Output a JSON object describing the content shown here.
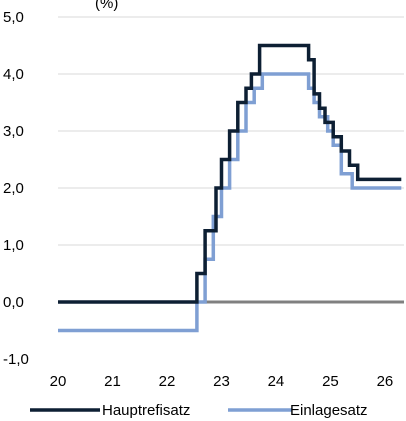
{
  "chart_data": {
    "type": "line",
    "title_fragment": "(%)",
    "xlabel": "",
    "ylabel": "",
    "xlim": [
      20,
      26.35
    ],
    "ylim": [
      -1,
      5
    ],
    "x_ticks": [
      "20",
      "21",
      "22",
      "23",
      "24",
      "25",
      "26"
    ],
    "y_ticks": [
      "-1,0",
      "0,0",
      "1,0",
      "2,0",
      "3,0",
      "4,0",
      "5,0"
    ],
    "y_gridlines": [
      1,
      2,
      3,
      4,
      5
    ],
    "grid": true,
    "legend_position": "bottom",
    "zero_line_color": "#808080",
    "series": [
      {
        "name": "Hauptrefisatz",
        "color": "#0d1f33",
        "step": "post",
        "x": [
          20.0,
          22.55,
          22.7,
          22.9,
          23.0,
          23.15,
          23.3,
          23.45,
          23.55,
          23.7,
          24.4,
          24.6,
          24.7,
          24.8,
          24.9,
          25.05,
          25.2,
          25.35,
          25.5,
          26.3
        ],
        "y": [
          0.0,
          0.5,
          1.25,
          2.0,
          2.5,
          3.0,
          3.5,
          3.75,
          4.0,
          4.5,
          4.5,
          4.25,
          3.65,
          3.4,
          3.15,
          2.9,
          2.65,
          2.4,
          2.15,
          2.15
        ]
      },
      {
        "name": "Einlagesatz",
        "color": "#7f9fd3",
        "step": "post",
        "x": [
          20.0,
          22.55,
          22.7,
          22.85,
          23.0,
          23.15,
          23.3,
          23.45,
          23.6,
          23.75,
          24.4,
          24.6,
          24.7,
          24.8,
          24.95,
          25.05,
          25.2,
          25.4,
          25.5,
          26.3
        ],
        "y": [
          -0.5,
          0.0,
          0.75,
          1.5,
          2.0,
          2.5,
          3.0,
          3.5,
          3.75,
          4.0,
          4.0,
          3.75,
          3.5,
          3.25,
          3.0,
          2.75,
          2.25,
          2.0,
          2.0,
          2.0
        ]
      }
    ]
  }
}
